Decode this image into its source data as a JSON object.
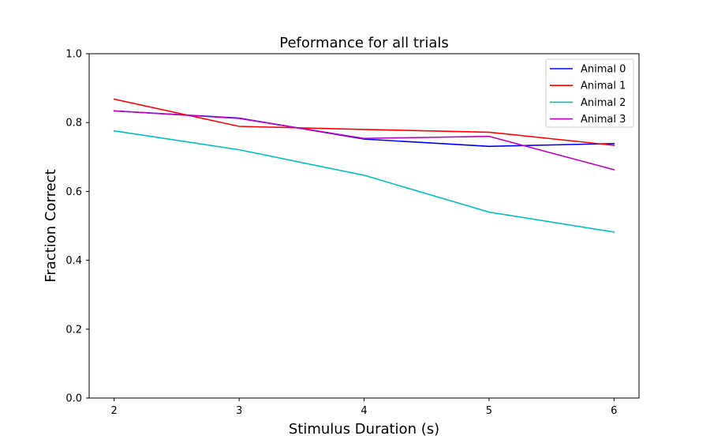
{
  "chart_data": {
    "type": "line",
    "title": "Peformance for all trials",
    "xlabel": "Stimulus Duration (s)",
    "ylabel": "Fraction Correct",
    "x": [
      2,
      3,
      4,
      5,
      6
    ],
    "xlim": [
      1.8,
      6.2
    ],
    "ylim": [
      0.0,
      1.0
    ],
    "xticks": [
      "2",
      "3",
      "4",
      "5",
      "6"
    ],
    "yticks": [
      "0.0",
      "0.2",
      "0.4",
      "0.6",
      "0.8",
      "1.0"
    ],
    "grid": false,
    "legend_position": "top-right",
    "series": [
      {
        "name": "Animal 0",
        "color": "#0000ff",
        "values": [
          0.834,
          0.813,
          0.752,
          0.731,
          0.739
        ]
      },
      {
        "name": "Animal 1",
        "color": "#ff0000",
        "values": [
          0.868,
          0.789,
          0.78,
          0.772,
          0.734
        ]
      },
      {
        "name": "Animal 2",
        "color": "#00bfbf",
        "values": [
          0.776,
          0.721,
          0.647,
          0.54,
          0.482
        ]
      },
      {
        "name": "Animal 3",
        "color": "#bf00bf",
        "values": [
          0.834,
          0.812,
          0.754,
          0.76,
          0.663
        ]
      }
    ]
  }
}
